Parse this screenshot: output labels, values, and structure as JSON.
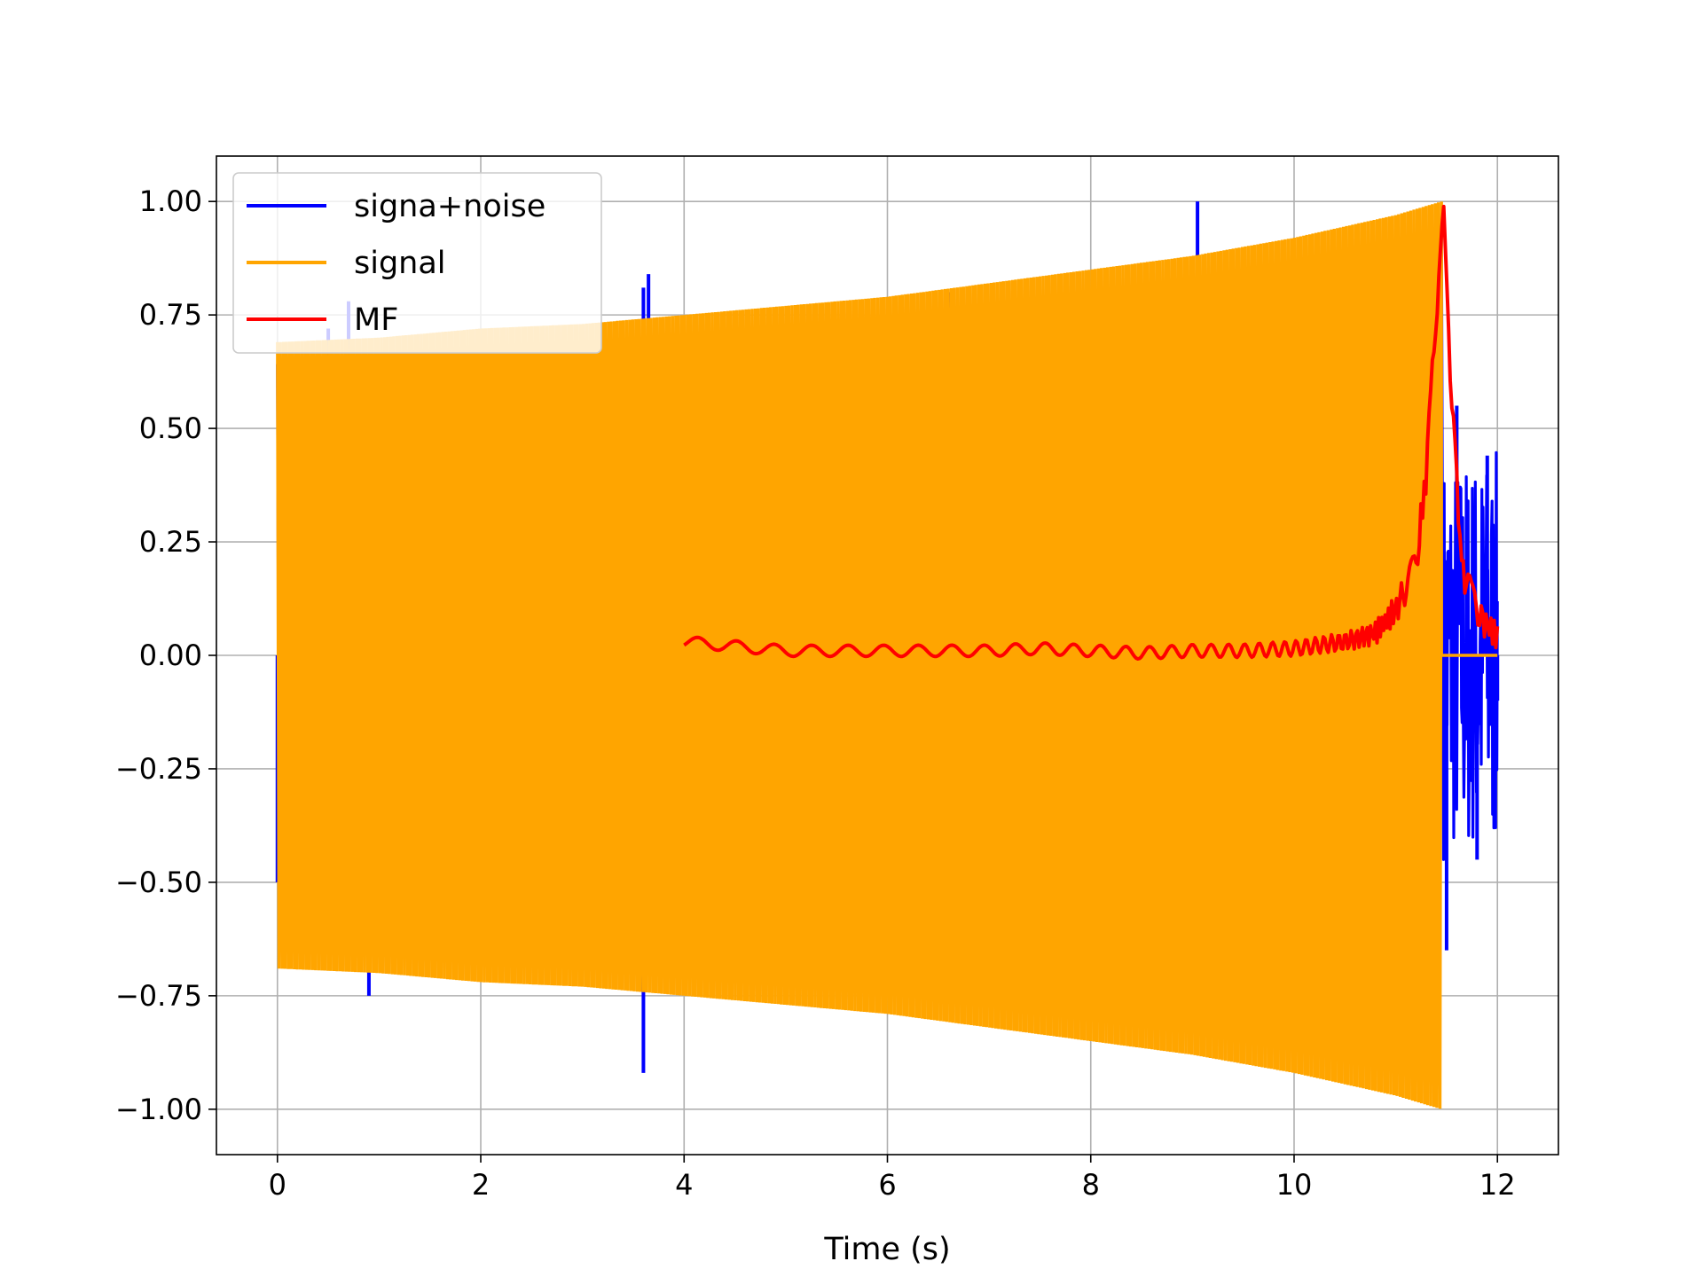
{
  "chart_data": {
    "type": "line",
    "title": "",
    "xlabel": "Time (s)",
    "ylabel": "",
    "xlim": [
      -0.6,
      12.6
    ],
    "ylim": [
      -1.1,
      1.1
    ],
    "xticks": [
      0,
      2,
      4,
      6,
      8,
      10,
      12
    ],
    "yticks": [
      -1.0,
      -0.75,
      -0.5,
      -0.25,
      0.0,
      0.25,
      0.5,
      0.75,
      1.0
    ],
    "xtick_labels": [
      "0",
      "2",
      "4",
      "6",
      "8",
      "10",
      "12"
    ],
    "ytick_labels": [
      "−1.00",
      "−0.75",
      "−0.50",
      "−0.25",
      "0.00",
      "0.25",
      "0.50",
      "0.75",
      "1.00"
    ],
    "grid": true,
    "legend_position": "top-left",
    "series": [
      {
        "name": "signa+noise",
        "color": "#0000ff",
        "description_points": [
          [
            0.0,
            -0.5
          ],
          [
            0.5,
            0.72
          ],
          [
            0.7,
            0.78
          ],
          [
            0.9,
            -0.75
          ],
          [
            3.6,
            -0.92
          ],
          [
            3.6,
            0.81
          ],
          [
            3.65,
            0.84
          ],
          [
            6.6,
            0.8
          ],
          [
            9.05,
            1.0
          ],
          [
            11.5,
            -0.65
          ],
          [
            11.6,
            0.55
          ],
          [
            11.8,
            -0.45
          ],
          [
            11.9,
            0.44
          ],
          [
            12.0,
            -0.1
          ]
        ]
      },
      {
        "name": "signal",
        "color": "#ffa500",
        "envelope": {
          "x": [
            0.0,
            1.0,
            2.0,
            3.0,
            4.0,
            5.0,
            6.0,
            7.0,
            8.0,
            9.0,
            10.0,
            11.0,
            11.45
          ],
          "upper": [
            0.69,
            0.7,
            0.72,
            0.73,
            0.75,
            0.77,
            0.79,
            0.82,
            0.85,
            0.88,
            0.92,
            0.97,
            1.0
          ],
          "lower": [
            -0.69,
            -0.7,
            -0.72,
            -0.73,
            -0.75,
            -0.77,
            -0.79,
            -0.82,
            -0.85,
            -0.88,
            -0.92,
            -0.97,
            -1.0
          ]
        },
        "zero_after": [
          11.47,
          12.0
        ]
      },
      {
        "name": "MF",
        "color": "#ff0000",
        "x": [
          4.0,
          4.5,
          5.0,
          5.5,
          6.0,
          6.5,
          7.0,
          7.5,
          8.0,
          8.5,
          9.0,
          9.5,
          10.0,
          10.5,
          10.8,
          11.0,
          11.2,
          11.3,
          11.4,
          11.47,
          11.55,
          11.65,
          11.75,
          11.85,
          12.0
        ],
        "y": [
          0.03,
          0.02,
          0.01,
          0.01,
          0.01,
          0.01,
          0.01,
          0.015,
          0.01,
          0.005,
          0.01,
          0.01,
          0.015,
          0.03,
          0.05,
          0.1,
          0.2,
          0.4,
          0.75,
          1.0,
          0.55,
          0.2,
          0.12,
          0.08,
          0.04
        ]
      }
    ]
  }
}
